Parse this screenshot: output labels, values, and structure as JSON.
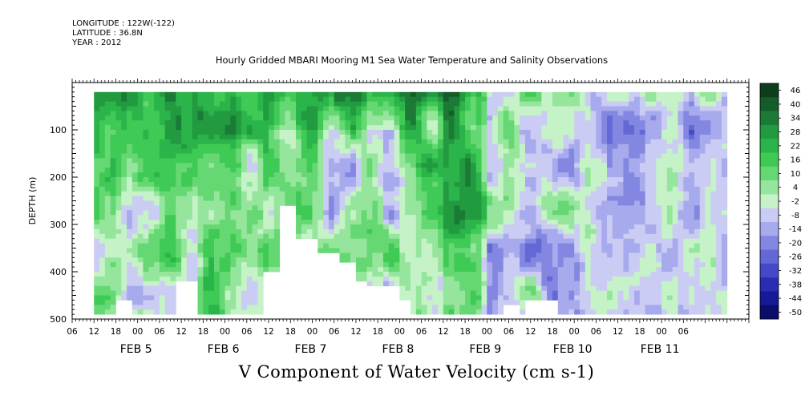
{
  "meta": {
    "longitude": "LONGITUDE : 122W(-122)",
    "latitude": "LATITUDE : 36.8N",
    "year": "YEAR : 2012"
  },
  "chart_data": {
    "type": "heatmap",
    "title": "Hourly Gridded MBARI Mooring M1 Sea Water Temperature and Salinity Observations",
    "variable_label": "V Component of Water Velocity (cm s-1)",
    "ylabel": "DEPTH (m)",
    "ylim": [
      500,
      0
    ],
    "y_ticks": [
      "100",
      "200",
      "300",
      "400",
      "500"
    ],
    "x_hour_ticks": [
      "06",
      "12",
      "18",
      "00",
      "06",
      "12",
      "18",
      "00",
      "06",
      "12",
      "18",
      "00",
      "06",
      "12",
      "18",
      "00",
      "06",
      "12",
      "18",
      "00",
      "06",
      "12",
      "18",
      "00",
      "06",
      "12",
      "18",
      "00",
      "06"
    ],
    "x_day_labels": [
      "FEB  5",
      "FEB  6",
      "FEB  7",
      "FEB  8",
      "FEB  9",
      "FEB 10",
      "FEB 11"
    ],
    "colorbar": {
      "labels": [
        "46",
        "40",
        "34",
        "28",
        "22",
        "16",
        "10",
        "4",
        "-2",
        "-8",
        "-14",
        "-20",
        "-26",
        "-32",
        "-38",
        "-44",
        "-50"
      ],
      "colors": [
        "#0e3d1e",
        "#145c2a",
        "#1b7a35",
        "#229a40",
        "#2bb44a",
        "#3fca55",
        "#66d873",
        "#95e69c",
        "#c5f2c6",
        "#cbccf3",
        "#a7aaec",
        "#8387e1",
        "#6468d6",
        "#4549c8",
        "#2a2db3",
        "#171a96",
        "#0a0d6b"
      ]
    },
    "data_extent": {
      "x_hours": [
        12,
        186
      ],
      "depth_m": [
        20,
        485
      ]
    },
    "data_summary": {
      "near_surface": "strong positive (green) at 20-80 m, especially FEB 6 through FEB 9",
      "feb_10_11": "predominantly negative (blue) at depth, about -10 to -25",
      "no_data": "gaps at depth below about 260-480 m on FEB 7-8"
    }
  },
  "colors": {
    "background": "#ffffff",
    "missing": "#ffffff"
  }
}
